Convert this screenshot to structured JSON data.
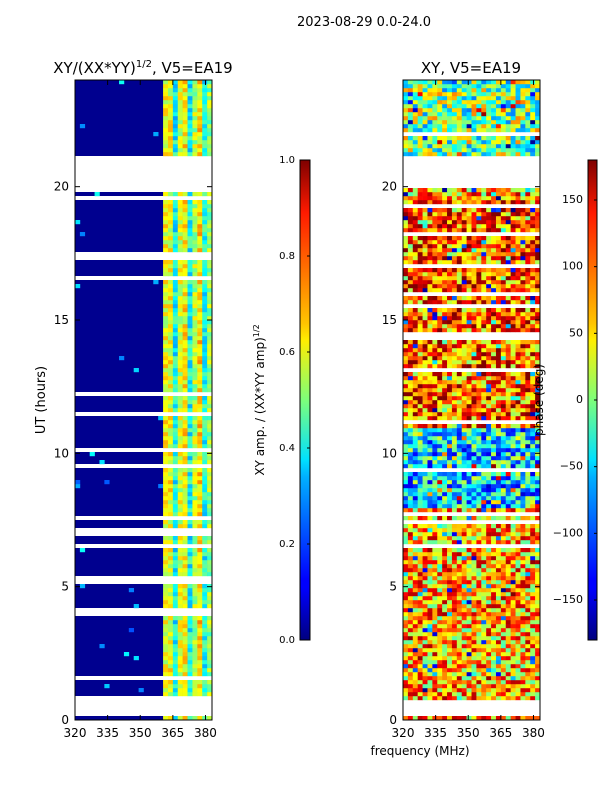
{
  "figure_title": "2023-08-29 0.0-24.0",
  "shared_xlabel": "frequency (MHz)",
  "chart_data": [
    {
      "type": "heatmap",
      "title_main": "XY/(XX*YY)",
      "title_exp": "1/2",
      "title_tail": ", V5=EA19",
      "xlabel": "",
      "ylabel": "UT (hours)",
      "xlim": [
        320,
        383
      ],
      "ylim": [
        0,
        24
      ],
      "xticks": [
        320,
        335,
        350,
        365,
        380
      ],
      "xtick_labels": [
        "320",
        "335",
        "350",
        "365",
        "380"
      ],
      "yticks": [
        0,
        5,
        10,
        15,
        20
      ],
      "ytick_labels": [
        "0",
        "5",
        "10",
        "15",
        "20"
      ],
      "colormap": "jet",
      "colorbar": {
        "label_main": "XY amp. / (XX*YY amp)",
        "label_exp": "1/2",
        "range": [
          0.0,
          1.0
        ],
        "ticks": [
          0.0,
          0.2,
          0.4,
          0.6,
          0.8,
          1.0
        ],
        "tick_labels": [
          "0.0",
          "0.2",
          "0.4",
          "0.6",
          "0.8",
          "1.0"
        ]
      },
      "gaps_hours": [
        [
          0.1,
          0.7
        ],
        [
          19.8,
          21.2
        ]
      ],
      "bright_band_mhz": [
        361,
        383
      ]
    },
    {
      "type": "heatmap",
      "title_main": "XY, V5=EA19",
      "xlabel": "frequency (MHz)",
      "ylabel": "",
      "xlim": [
        320,
        383
      ],
      "ylim": [
        0,
        24
      ],
      "xticks": [
        320,
        335,
        350,
        365,
        380
      ],
      "xtick_labels": [
        "320",
        "335",
        "350",
        "365",
        "380"
      ],
      "yticks": [
        0,
        5,
        10,
        15,
        20
      ],
      "ytick_labels": [
        "0",
        "5",
        "10",
        "15",
        "20"
      ],
      "colormap": "jet",
      "colorbar": {
        "label_main": "phase (deg)",
        "range": [
          -180,
          180
        ],
        "ticks": [
          -150,
          -100,
          -50,
          0,
          50,
          100,
          150
        ],
        "tick_labels": [
          "−150",
          "−100",
          "−50",
          "0",
          "50",
          "100",
          "150"
        ]
      },
      "gaps_hours": [
        [
          0.3,
          0.8
        ],
        [
          19.9,
          21.2
        ]
      ]
    }
  ]
}
